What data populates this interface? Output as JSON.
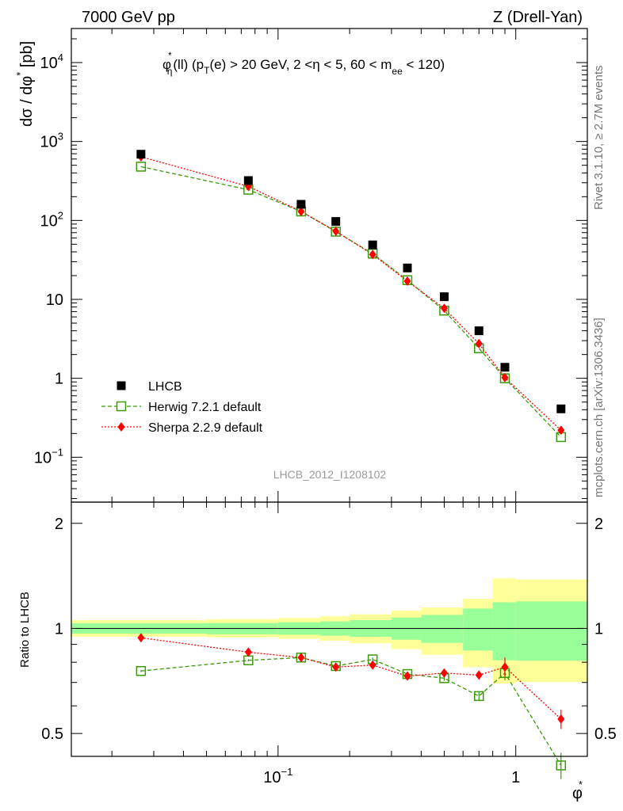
{
  "header": {
    "left": "7000 GeV pp",
    "right": "Z (Drell-Yan)",
    "side_top": "Rivet 3.1.10, ≥ 2.7M events",
    "side_bottom": "mcplots.cern.ch [arXiv:1306.3436]",
    "watermark": "LHCB_2012_I1208102"
  },
  "main_plot": {
    "title": {
      "phi": "φ",
      "star": "*",
      "eta_sub": "η",
      "part1": "(ll) (p",
      "T_sub": "T",
      "part2": "(e) > 20 GeV, 2 <η < 5, 60 < m",
      "ee_sub": "ee",
      "part3": " < 120)"
    },
    "ylabel": {
      "main": "dσ / dφ",
      "star": "*",
      "unit": " [pb]"
    },
    "yticks": [
      {
        "value": 10000,
        "base": "10",
        "exp": "4"
      },
      {
        "value": 1000,
        "base": "10",
        "exp": "3"
      },
      {
        "value": 100,
        "base": "10",
        "exp": "2"
      },
      {
        "value": 10,
        "base": "10",
        "exp": ""
      },
      {
        "value": 1,
        "base": "1",
        "exp": ""
      },
      {
        "value": 0.1,
        "base": "10",
        "exp": "−1"
      }
    ],
    "legend": [
      {
        "label": "LHCB",
        "style": "data"
      },
      {
        "label": "Herwig 7.2.1 default",
        "style": "herwig"
      },
      {
        "label": "Sherpa 2.2.9 default",
        "style": "sherpa"
      }
    ]
  },
  "ratio_plot": {
    "ylabel": "Ratio to LHCB",
    "yticks": [
      {
        "value": 2,
        "label": "2"
      },
      {
        "value": 1,
        "label": "1"
      },
      {
        "value": 0.5,
        "label": "0.5"
      }
    ]
  },
  "xaxis": {
    "label_main": "φ",
    "label_star": "*",
    "ticks": [
      {
        "value": 0.1,
        "base": "10",
        "exp": "−1"
      },
      {
        "value": 1,
        "base": "1",
        "exp": ""
      }
    ]
  },
  "colors": {
    "data": "#000000",
    "herwig": "#3a9a0a",
    "sherpa": "#ff0000",
    "band_outer": "#ffff99",
    "band_inner": "#99ff99"
  },
  "chart_data": {
    "type": "scatter",
    "x_scale": "log",
    "xlim": [
      0.0135,
      2.0
    ],
    "main": {
      "y_scale": "log",
      "ylim": [
        0.027,
        27000
      ],
      "x": [
        0.0265,
        0.075,
        0.125,
        0.175,
        0.25,
        0.35,
        0.5,
        0.7,
        0.9,
        1.55
      ],
      "series": [
        {
          "name": "LHCB",
          "values": [
            690,
            320,
            160,
            97,
            49,
            25,
            10.8,
            4.0,
            1.38,
            0.41
          ]
        },
        {
          "name": "Herwig 7.2.1 default",
          "values": [
            480,
            245,
            130,
            72,
            38,
            17.5,
            7.2,
            2.4,
            1.0,
            0.18
          ]
        },
        {
          "name": "Sherpa 2.2.9 default",
          "values": [
            640,
            270,
            130,
            73,
            37,
            17.0,
            7.7,
            2.75,
            1.02,
            0.22
          ]
        }
      ]
    },
    "ratio": {
      "y_scale": "log",
      "ylim": [
        0.43,
        2.3
      ],
      "bin_edges": [
        0.0135,
        0.05,
        0.1,
        0.15,
        0.2,
        0.3,
        0.4,
        0.6,
        0.8,
        1.0,
        2.0
      ],
      "band_inner": {
        "lo": [
          0.966,
          0.962,
          0.959,
          0.953,
          0.946,
          0.928,
          0.909,
          0.864,
          0.81,
          0.808
        ],
        "hi": [
          1.035,
          1.036,
          1.041,
          1.047,
          1.056,
          1.074,
          1.093,
          1.14,
          1.188,
          1.195
        ]
      },
      "band_outer": {
        "lo": [
          0.947,
          0.942,
          0.933,
          0.922,
          0.906,
          0.872,
          0.84,
          0.774,
          0.695,
          0.702
        ],
        "hi": [
          1.055,
          1.063,
          1.071,
          1.083,
          1.097,
          1.125,
          1.148,
          1.215,
          1.39,
          1.381
        ]
      },
      "x": [
        0.0265,
        0.075,
        0.125,
        0.175,
        0.25,
        0.35,
        0.5,
        0.7,
        0.9,
        1.55
      ],
      "series": [
        {
          "name": "Herwig 7.2.1 default",
          "values": [
            0.755,
            0.81,
            0.825,
            0.78,
            0.815,
            0.74,
            0.72,
            0.64,
            0.745,
            0.405
          ],
          "errors": [
            0.005,
            0.006,
            0.007,
            0.008,
            0.01,
            0.012,
            0.012,
            0.02,
            0.035,
            0.035
          ]
        },
        {
          "name": "Sherpa 2.2.9 default",
          "values": [
            0.94,
            0.855,
            0.825,
            0.775,
            0.785,
            0.73,
            0.745,
            0.735,
            0.775,
            0.55
          ],
          "errors": [
            0.005,
            0.006,
            0.007,
            0.008,
            0.01,
            0.012,
            0.012,
            0.02,
            0.05,
            0.035
          ]
        }
      ]
    }
  }
}
